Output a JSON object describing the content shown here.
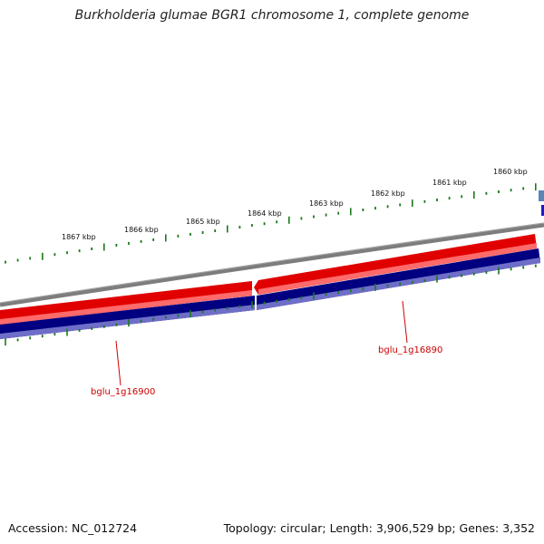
{
  "title": "Burkholderia glumae BGR1 chromosome 1, complete genome",
  "scale_labels": [
    "1867 kbp",
    "1866 kbp",
    "1865 kbp",
    "1864 kbp",
    "1863 kbp",
    "1862 kbp",
    "1861 kbp",
    "1860 kbp"
  ],
  "genes": [
    {
      "name": "bglu_1g16900"
    },
    {
      "name": "bglu_1g16890"
    }
  ],
  "footer": {
    "accession": "Accession: NC_012724",
    "summary": "Topology: circular; Length: 3,906,529 bp; Genes: 3,352"
  },
  "colors": {
    "backbone": "#808080",
    "forward_strand": "#e00000",
    "reverse_strand": "#000080",
    "tick": "#1a7a1a",
    "gene_label": "#cc0000"
  }
}
